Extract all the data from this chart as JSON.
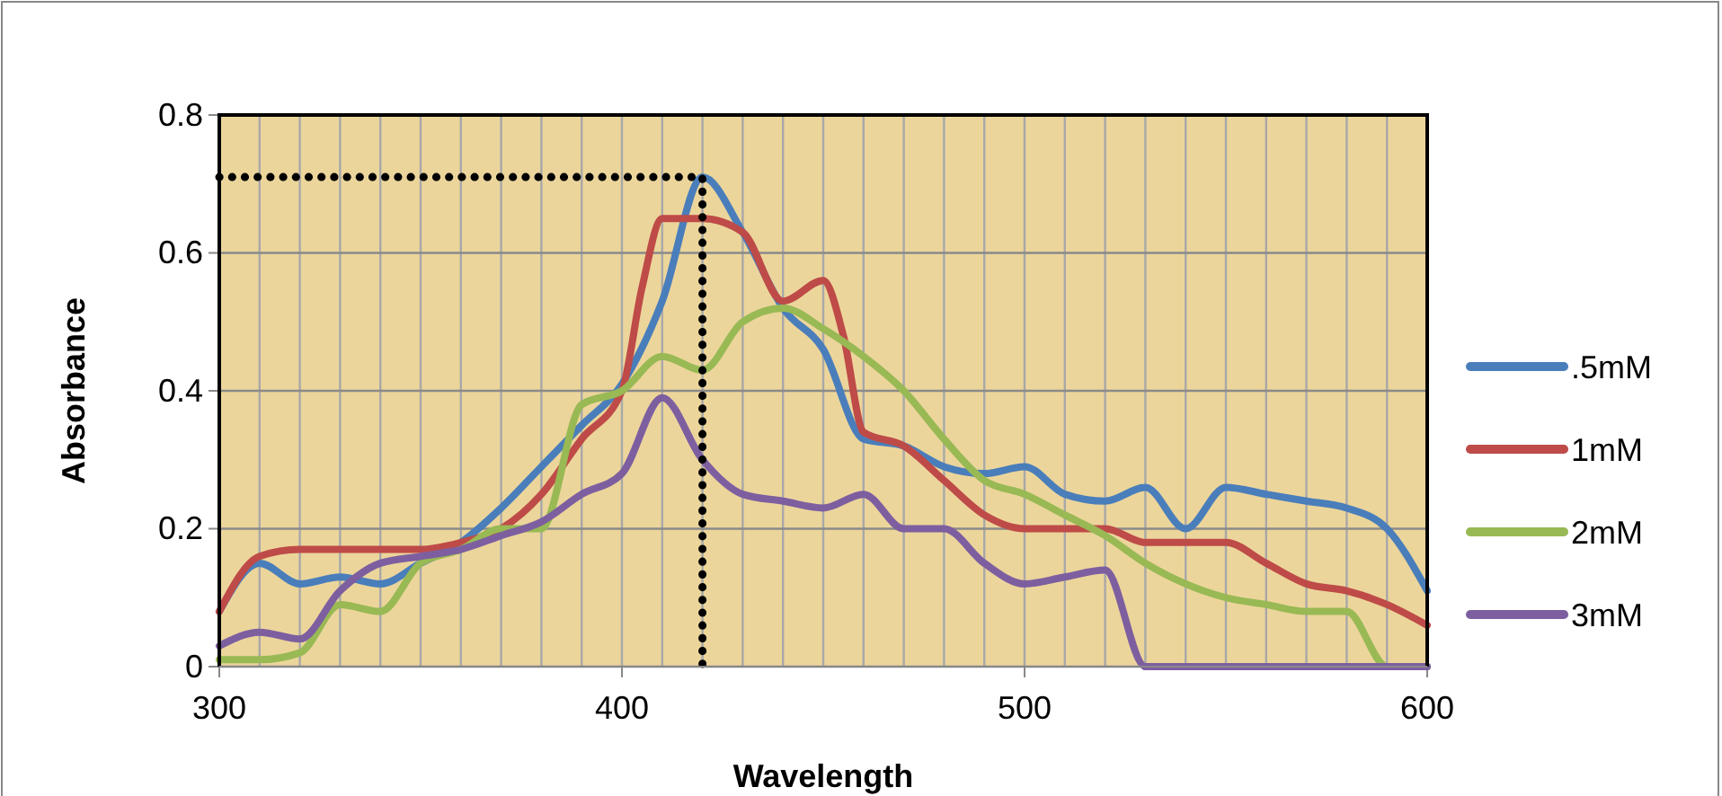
{
  "chart_data": {
    "type": "line",
    "xlabel": "Wavelength",
    "ylabel": "Absorbance",
    "xlim": [
      300,
      600
    ],
    "xticks": [
      300,
      400,
      500,
      600
    ],
    "ylim": [
      0,
      0.8
    ],
    "yticks": [
      0,
      0.2,
      0.4,
      0.6,
      0.8
    ],
    "grid": true,
    "legend": "right",
    "line_style": "solid",
    "marker": "none",
    "series": [
      {
        "name": ".5mM",
        "color": "#4a7ebb",
        "x": [
          300,
          310,
          320,
          330,
          340,
          350,
          360,
          370,
          380,
          390,
          400,
          410,
          420,
          430,
          440,
          450,
          460,
          470,
          480,
          490,
          500,
          510,
          520,
          530,
          540,
          550,
          560,
          570,
          580,
          590,
          600
        ],
        "values": [
          0.08,
          0.15,
          0.12,
          0.13,
          0.12,
          0.15,
          0.18,
          0.23,
          0.29,
          0.35,
          0.41,
          0.53,
          0.71,
          0.63,
          0.52,
          0.46,
          0.33,
          0.32,
          0.29,
          0.28,
          0.29,
          0.25,
          0.24,
          0.26,
          0.2,
          0.26,
          0.25,
          0.24,
          0.23,
          0.2,
          0.11
        ]
      },
      {
        "name": "1mM",
        "color": "#be4b48",
        "x": [
          300,
          310,
          320,
          330,
          340,
          350,
          360,
          370,
          380,
          390,
          400,
          405,
          410,
          420,
          430,
          440,
          450,
          455,
          460,
          470,
          480,
          490,
          500,
          510,
          520,
          530,
          540,
          550,
          560,
          570,
          580,
          590,
          600
        ],
        "values": [
          0.08,
          0.16,
          0.17,
          0.17,
          0.17,
          0.17,
          0.18,
          0.2,
          0.25,
          0.33,
          0.4,
          0.55,
          0.65,
          0.65,
          0.63,
          0.53,
          0.56,
          0.48,
          0.34,
          0.32,
          0.27,
          0.22,
          0.2,
          0.2,
          0.2,
          0.18,
          0.18,
          0.18,
          0.15,
          0.12,
          0.11,
          0.09,
          0.06
        ]
      },
      {
        "name": "2mM",
        "color": "#98b954",
        "x": [
          300,
          310,
          320,
          330,
          340,
          350,
          360,
          370,
          380,
          390,
          400,
          410,
          420,
          430,
          440,
          450,
          460,
          470,
          480,
          490,
          500,
          510,
          520,
          530,
          540,
          550,
          560,
          570,
          580,
          590,
          600
        ],
        "values": [
          0.01,
          0.01,
          0.02,
          0.09,
          0.08,
          0.15,
          0.17,
          0.2,
          0.2,
          0.38,
          0.4,
          0.45,
          0.43,
          0.5,
          0.52,
          0.49,
          0.45,
          0.4,
          0.33,
          0.27,
          0.25,
          0.22,
          0.19,
          0.15,
          0.12,
          0.1,
          0.09,
          0.08,
          0.08,
          0,
          0
        ]
      },
      {
        "name": "3mM",
        "color": "#7d5fa0",
        "x": [
          300,
          310,
          320,
          330,
          340,
          350,
          360,
          370,
          380,
          390,
          400,
          410,
          420,
          430,
          440,
          450,
          460,
          470,
          480,
          490,
          500,
          510,
          520,
          530,
          540,
          550,
          560,
          570,
          580,
          590,
          600
        ],
        "values": [
          0.03,
          0.05,
          0.04,
          0.11,
          0.15,
          0.16,
          0.17,
          0.19,
          0.21,
          0.25,
          0.28,
          0.39,
          0.3,
          0.25,
          0.24,
          0.23,
          0.25,
          0.2,
          0.2,
          0.15,
          0.12,
          0.13,
          0.14,
          0,
          0,
          0,
          0,
          0,
          0,
          0,
          0
        ]
      },
      {
        "color": "#000000",
        "line_style": "dotted",
        "x": [
          300,
          420,
          420
        ],
        "values": [
          0.71,
          0.71,
          0
        ]
      }
    ]
  }
}
